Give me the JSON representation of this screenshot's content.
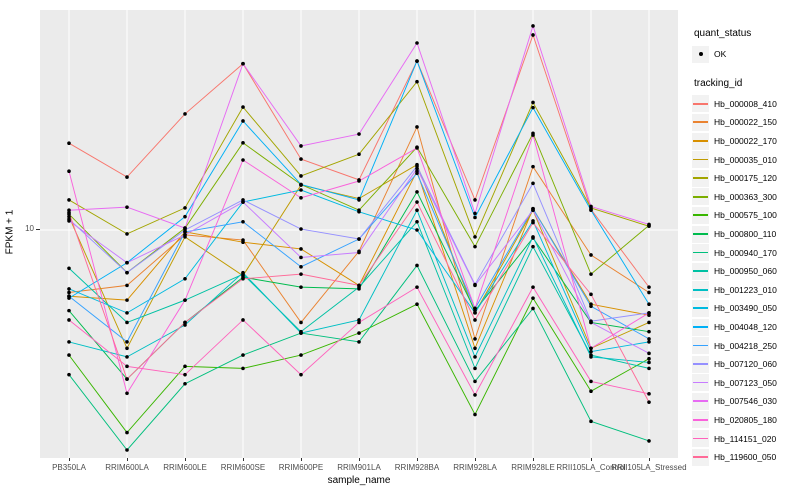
{
  "colors": {
    "panel_bg": "#EBEBEB",
    "gridline": "#FFFFFF",
    "point": "#000000",
    "axis_text": "#4D4D4D",
    "legend_key_bg": "#F2F2F2"
  },
  "legend": {
    "quant_status": {
      "title": "quant_status",
      "items": [
        {
          "label": "OK"
        }
      ]
    },
    "tracking_id": {
      "title": "tracking_id"
    }
  },
  "chart_data": {
    "type": "line",
    "title": "",
    "xlabel": "sample_name",
    "ylabel": "FPKM + 1",
    "y_scale": "log10",
    "y_ticks": [
      "10"
    ],
    "ylim": [
      0.92,
      110
    ],
    "grid": "vertical-major-and-y10",
    "legend_position": "right",
    "categories": [
      "PB350LA",
      "RRIM600LA",
      "RRIM600LE",
      "RRIM600SE",
      "RRIM600PE",
      "RRIM901LA",
      "RRIM928BA",
      "RRIM928LA",
      "RRIM928LE",
      "RRII105LA_Control",
      "RRII105LA_Stressed"
    ],
    "point_status": "OK",
    "series": [
      {
        "name": "Hb_000008_410",
        "color": "#F8766D",
        "values": [
          24.8,
          17.4,
          33.7,
          57,
          21,
          16.9,
          58.6,
          13.7,
          77,
          12.4,
          5.5
        ]
      },
      {
        "name": "Hb_000022_150",
        "color": "#EA8331",
        "values": [
          5.2,
          5.6,
          9.5,
          9.0,
          3.8,
          8.0,
          29.4,
          3.2,
          19.4,
          7.7,
          5.2
        ]
      },
      {
        "name": "Hb_000022_170",
        "color": "#D89000",
        "values": [
          5.0,
          4.8,
          9.8,
          8.8,
          8.2,
          5.6,
          18.5,
          2.9,
          12.5,
          4.6,
          4.1
        ]
      },
      {
        "name": "Hb_000035_010",
        "color": "#C09B00",
        "values": [
          11.5,
          2.9,
          9.3,
          6.2,
          16,
          13.9,
          19.8,
          4.2,
          12.3,
          2.9,
          3.8
        ]
      },
      {
        "name": "Hb_000175_120",
        "color": "#A3A500",
        "values": [
          13.7,
          9.6,
          12.6,
          36.2,
          17.6,
          22.1,
          47.2,
          9.3,
          38,
          12.6,
          10.4
        ]
      },
      {
        "name": "Hb_000363_300",
        "color": "#7CAE00",
        "values": [
          11.8,
          6.4,
          10.2,
          24.9,
          16.1,
          12.3,
          23.8,
          8.4,
          27.5,
          6.3,
          10.5
        ]
      },
      {
        "name": "Hb_000575_100",
        "color": "#39B600",
        "values": [
          2.7,
          1.2,
          2.4,
          2.35,
          2.7,
          3.4,
          4.6,
          1.45,
          4.9,
          1.85,
          2.6
        ]
      },
      {
        "name": "Hb_000800_110",
        "color": "#00BB4E",
        "values": [
          4.3,
          2.1,
          3.8,
          6.1,
          5.5,
          5.4,
          14.9,
          4.3,
          9.2,
          3.8,
          3.45
        ]
      },
      {
        "name": "Hb_000940_170",
        "color": "#00BF7D",
        "values": [
          2.2,
          1.0,
          2.0,
          2.7,
          3.4,
          3.1,
          6.9,
          2.05,
          4.4,
          1.35,
          1.1
        ]
      },
      {
        "name": "Hb_000950_060",
        "color": "#00C1A3",
        "values": [
          6.7,
          3.8,
          4.8,
          6.3,
          3.45,
          5.5,
          10.9,
          2.35,
          8.4,
          2.7,
          2.35
        ]
      },
      {
        "name": "Hb_001223_010",
        "color": "#00BFC4",
        "values": [
          3.1,
          2.65,
          3.7,
          6.4,
          3.4,
          3.9,
          12.3,
          2.65,
          9.3,
          2.65,
          2.5
        ]
      },
      {
        "name": "Hb_003490_050",
        "color": "#00BAE0",
        "values": [
          5.4,
          4.2,
          6.0,
          13.4,
          15.2,
          12.1,
          10.0,
          4.2,
          11.0,
          2.8,
          3.1
        ]
      },
      {
        "name": "Hb_004048_120",
        "color": "#00B0F6",
        "values": [
          4.9,
          7.1,
          11.5,
          31.3,
          16.1,
          13.7,
          58.6,
          11.4,
          36,
          12.3,
          4.6
        ]
      },
      {
        "name": "Hb_004218_250",
        "color": "#35A2FF",
        "values": [
          5.0,
          3.1,
          9.8,
          10.9,
          6.8,
          9.1,
          18.1,
          4.4,
          12.5,
          4.5,
          3.2
        ]
      },
      {
        "name": "Hb_007120_060",
        "color": "#9590FF",
        "values": [
          11.2,
          6.4,
          10.0,
          13.7,
          10.1,
          9.1,
          19.5,
          5.65,
          16.3,
          3.85,
          4.2
        ]
      },
      {
        "name": "Hb_007123_050",
        "color": "#C77CFF",
        "values": [
          11.0,
          7.1,
          9.5,
          13.4,
          7.5,
          7.9,
          19.0,
          5.6,
          12.3,
          3.8,
          2.75
        ]
      },
      {
        "name": "Hb_007546_030",
        "color": "#E76BF3",
        "values": [
          12.3,
          12.7,
          10.2,
          57,
          24.1,
          27.3,
          70.8,
          11.9,
          84.6,
          12.8,
          10.6
        ]
      },
      {
        "name": "Hb_020805_180",
        "color": "#FA62DB",
        "values": [
          18.5,
          1.81,
          4.8,
          20.8,
          14,
          16.7,
          23.6,
          4.4,
          27,
          2.9,
          4.2
        ]
      },
      {
        "name": "Hb_114151_020",
        "color": "#FF62BC",
        "values": [
          3.9,
          2.4,
          2.2,
          3.9,
          2.2,
          3.8,
          5.5,
          1.78,
          5.5,
          2.05,
          1.8
        ]
      },
      {
        "name": "Hb_119600_050",
        "color": "#FF6A98",
        "values": [
          12.0,
          2.1,
          3.8,
          6.0,
          6.3,
          5.6,
          13.4,
          3.9,
          10.8,
          5.1,
          1.65
        ]
      }
    ]
  }
}
